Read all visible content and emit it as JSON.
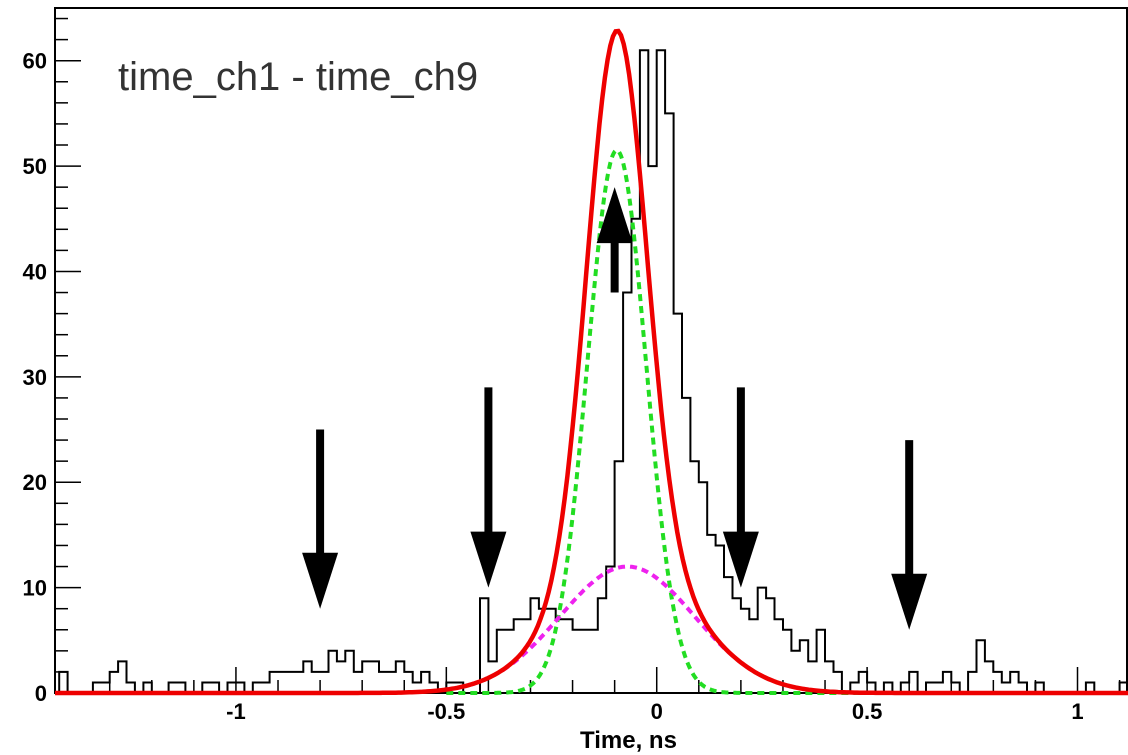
{
  "chart_data": {
    "type": "histogram",
    "title": "time_ch1 - time_ch9",
    "xlabel": "Time, ns",
    "ylabel": "",
    "xlim": [
      -1.43,
      1.12
    ],
    "ylim": [
      0,
      65
    ],
    "x_ticks": [
      -1,
      -0.5,
      0,
      0.5,
      1
    ],
    "x_tick_labels": [
      "-1",
      "-0.5",
      "0",
      "0.5",
      "1"
    ],
    "y_ticks": [
      0,
      10,
      20,
      30,
      40,
      50,
      60
    ],
    "y_tick_labels": [
      "0",
      "10",
      "20",
      "30",
      "40",
      "50",
      "60"
    ],
    "bin_start": -1.42,
    "bin_width": 0.02,
    "counts": [
      2,
      0,
      0,
      0,
      1,
      1,
      2,
      3,
      1,
      0,
      1,
      0,
      0,
      1,
      1,
      0,
      0,
      1,
      1,
      0,
      1,
      1,
      0,
      1,
      1,
      2,
      2,
      2,
      2,
      3,
      2,
      2,
      4,
      3,
      4,
      2,
      3,
      3,
      2,
      2,
      3,
      2,
      1,
      2,
      1,
      0,
      1,
      1,
      0,
      0,
      9,
      3,
      6,
      6,
      7,
      7,
      9,
      8,
      8,
      7,
      7,
      6,
      6,
      6,
      9,
      12,
      22,
      38,
      45,
      61,
      50,
      61,
      55,
      36,
      28,
      22,
      20,
      15,
      14,
      11,
      9,
      8,
      7,
      10,
      9,
      7,
      6,
      4,
      5,
      3,
      6,
      3,
      2,
      0,
      1,
      2,
      1,
      0,
      1,
      0,
      1,
      2,
      0,
      1,
      1,
      2,
      1,
      0,
      2,
      5,
      3,
      2,
      1,
      2,
      1,
      0,
      1,
      0,
      0,
      0,
      0,
      0,
      1,
      0,
      0,
      0,
      1,
      0,
      0,
      0,
      1,
      0,
      0,
      1,
      1,
      0,
      1
    ],
    "fits": [
      {
        "name": "total",
        "type": "gaussian_sum",
        "color": "#ee0000",
        "range": [
          -1.43,
          1.12
        ],
        "components": [
          {
            "amp": 51,
            "mean": -0.095,
            "sigma": 0.07
          },
          {
            "amp": 12,
            "mean": -0.07,
            "sigma": 0.16
          }
        ]
      },
      {
        "name": "narrow",
        "type": "gaussian",
        "color": "#22dd22",
        "amp": 51.5,
        "mean": -0.095,
        "sigma": 0.07,
        "range": [
          -0.5,
          0.5
        ]
      },
      {
        "name": "wide",
        "type": "gaussian",
        "color": "#ee22ee",
        "amp": 12,
        "mean": -0.07,
        "sigma": 0.16,
        "range": [
          -0.5,
          0.5
        ]
      }
    ],
    "arrows": [
      {
        "x": -0.8,
        "y_from": 25,
        "y_to": 8,
        "direction": "down"
      },
      {
        "x": -0.4,
        "y_from": 29,
        "y_to": 10,
        "direction": "down"
      },
      {
        "x": -0.1,
        "y_from": 38,
        "y_to": 48,
        "direction": "up"
      },
      {
        "x": 0.2,
        "y_from": 29,
        "y_to": 10,
        "direction": "down"
      },
      {
        "x": 0.6,
        "y_from": 24,
        "y_to": 6,
        "direction": "down"
      }
    ],
    "grid": false,
    "legend": "none"
  }
}
